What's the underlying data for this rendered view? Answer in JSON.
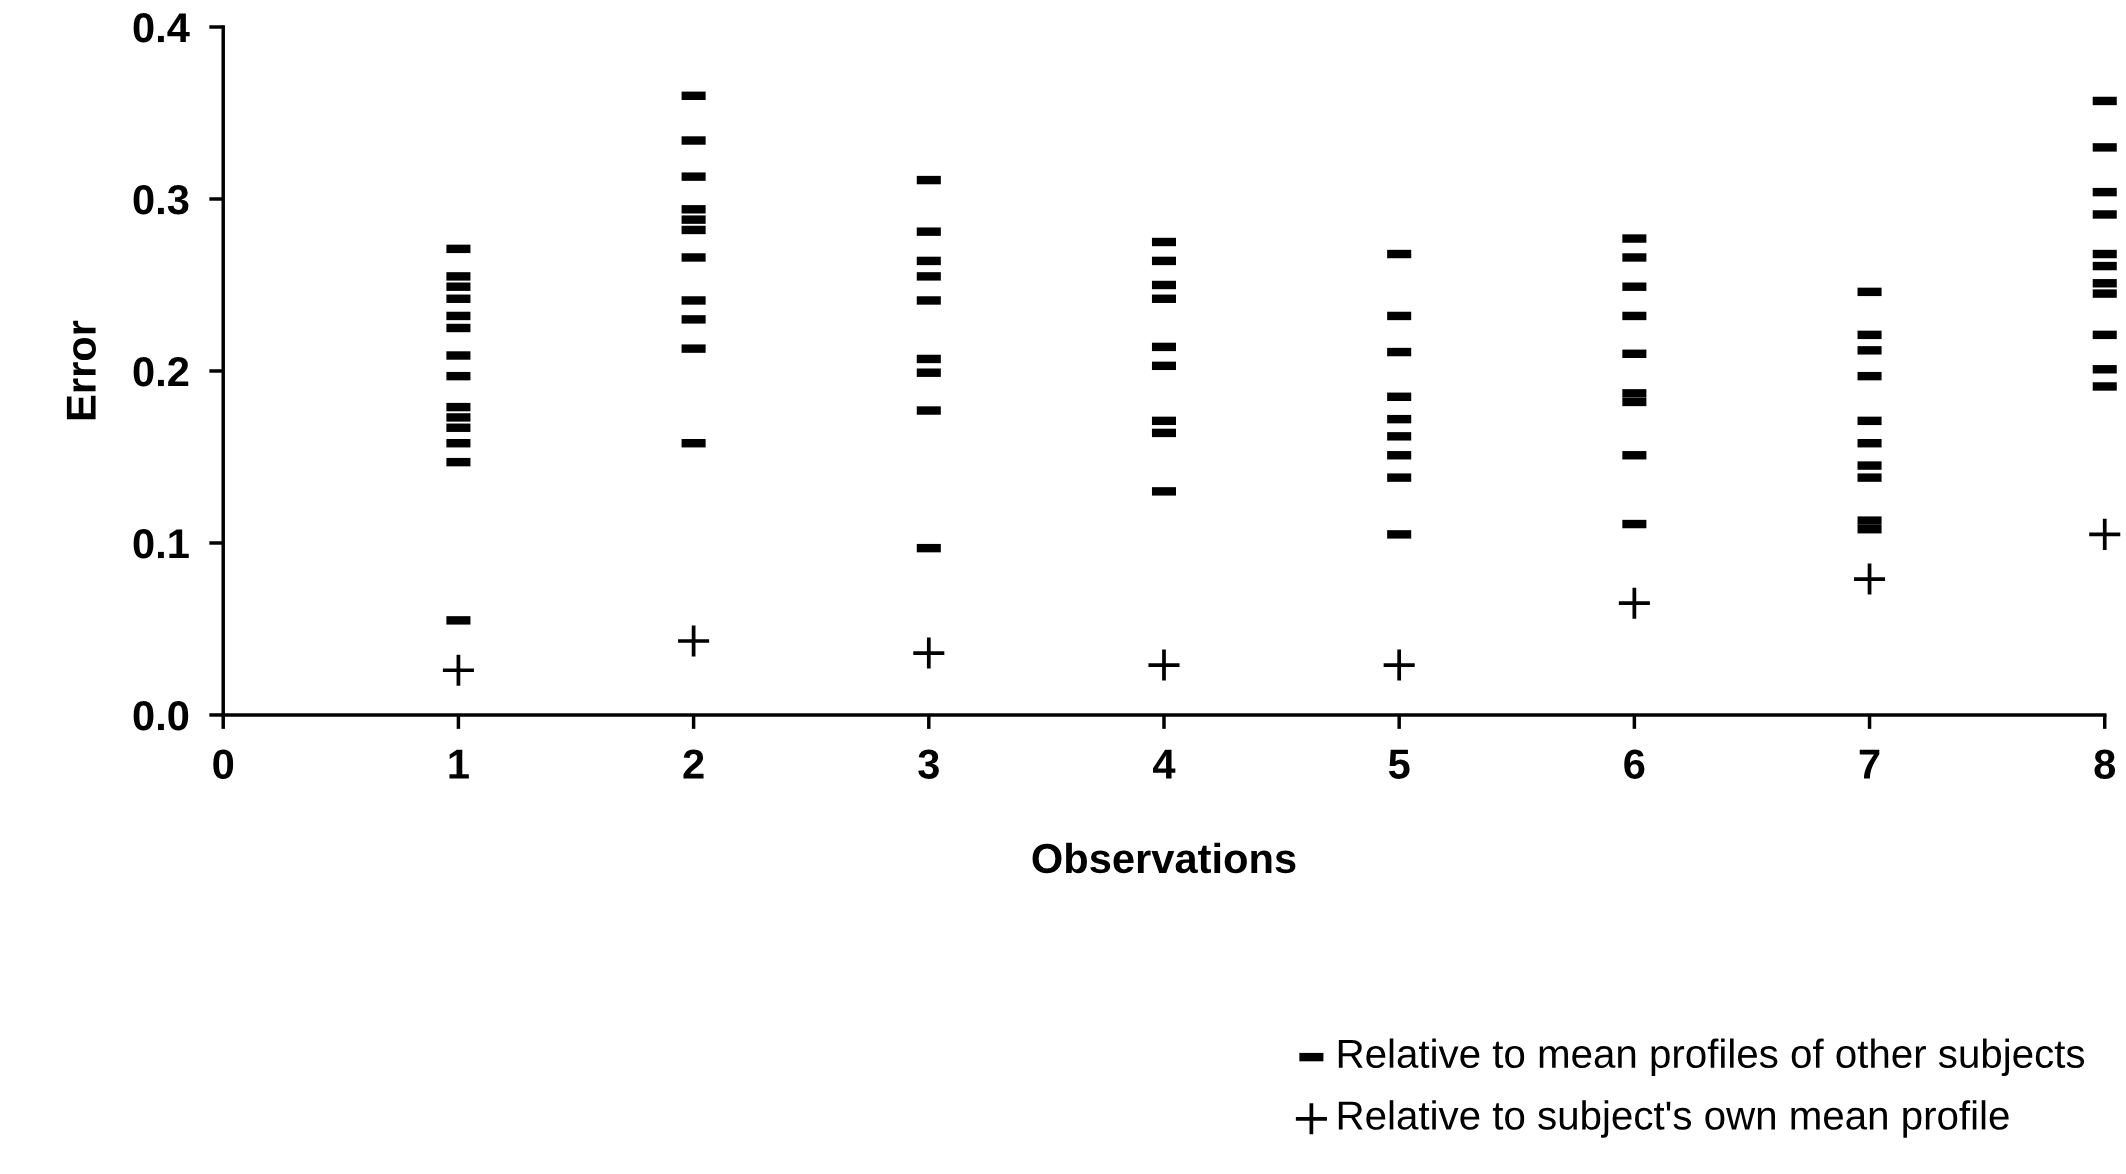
{
  "chart_data": {
    "type": "scatter",
    "xlabel": "Observations",
    "ylabel": "Error",
    "xlim": [
      0,
      8
    ],
    "xticks": [
      0,
      1,
      2,
      3,
      4,
      5,
      6,
      7,
      8
    ],
    "ylim": [
      0,
      0.4
    ],
    "yticks": [
      {
        "value": 0,
        "label": "0.0"
      },
      0.1,
      0.2,
      0.3,
      0.4
    ],
    "grid": false,
    "legend": "bottom right",
    "series": [
      {
        "name": "Relative to mean profiles of other subjects",
        "color": "#000000",
        "marker": "square",
        "x": [
          1,
          1,
          1,
          1,
          1,
          1,
          1,
          1,
          1,
          1,
          1,
          1,
          1,
          1,
          2,
          2,
          2,
          2,
          2,
          2,
          2,
          2,
          2,
          2,
          2,
          3,
          3,
          3,
          3,
          3,
          3,
          3,
          3,
          3,
          4,
          4,
          4,
          4,
          4,
          4,
          4,
          4,
          4,
          5,
          5,
          5,
          5,
          5,
          5,
          5,
          5,
          5,
          6,
          6,
          6,
          6,
          6,
          6,
          6,
          6,
          6,
          7,
          7,
          7,
          7,
          7,
          7,
          7,
          7,
          7,
          7,
          8,
          8,
          8,
          8,
          8,
          8,
          8,
          8,
          8,
          8,
          8
        ],
        "values": [
          0.271,
          0.255,
          0.249,
          0.242,
          0.232,
          0.225,
          0.209,
          0.197,
          0.179,
          0.173,
          0.167,
          0.158,
          0.147,
          0.055,
          0.36,
          0.334,
          0.313,
          0.294,
          0.288,
          0.282,
          0.266,
          0.241,
          0.23,
          0.213,
          0.158,
          0.311,
          0.281,
          0.264,
          0.255,
          0.241,
          0.207,
          0.199,
          0.177,
          0.097,
          0.275,
          0.264,
          0.25,
          0.242,
          0.214,
          0.203,
          0.171,
          0.164,
          0.13,
          0.268,
          0.232,
          0.211,
          0.185,
          0.172,
          0.162,
          0.151,
          0.138,
          0.105,
          0.277,
          0.266,
          0.249,
          0.232,
          0.21,
          0.187,
          0.182,
          0.151,
          0.111,
          0.246,
          0.221,
          0.212,
          0.197,
          0.171,
          0.158,
          0.145,
          0.138,
          0.113,
          0.108,
          0.357,
          0.33,
          0.304,
          0.291,
          0.268,
          0.261,
          0.251,
          0.245,
          0.221,
          0.201,
          0.191
        ]
      },
      {
        "name": "Relative to subject's own mean profile",
        "color": "#000000",
        "marker": "cross",
        "x": [
          1,
          2,
          3,
          4,
          5,
          6,
          7,
          8
        ],
        "values": [
          0.026,
          0.043,
          0.036,
          0.029,
          0.029,
          0.065,
          0.079,
          0.105
        ]
      }
    ]
  }
}
